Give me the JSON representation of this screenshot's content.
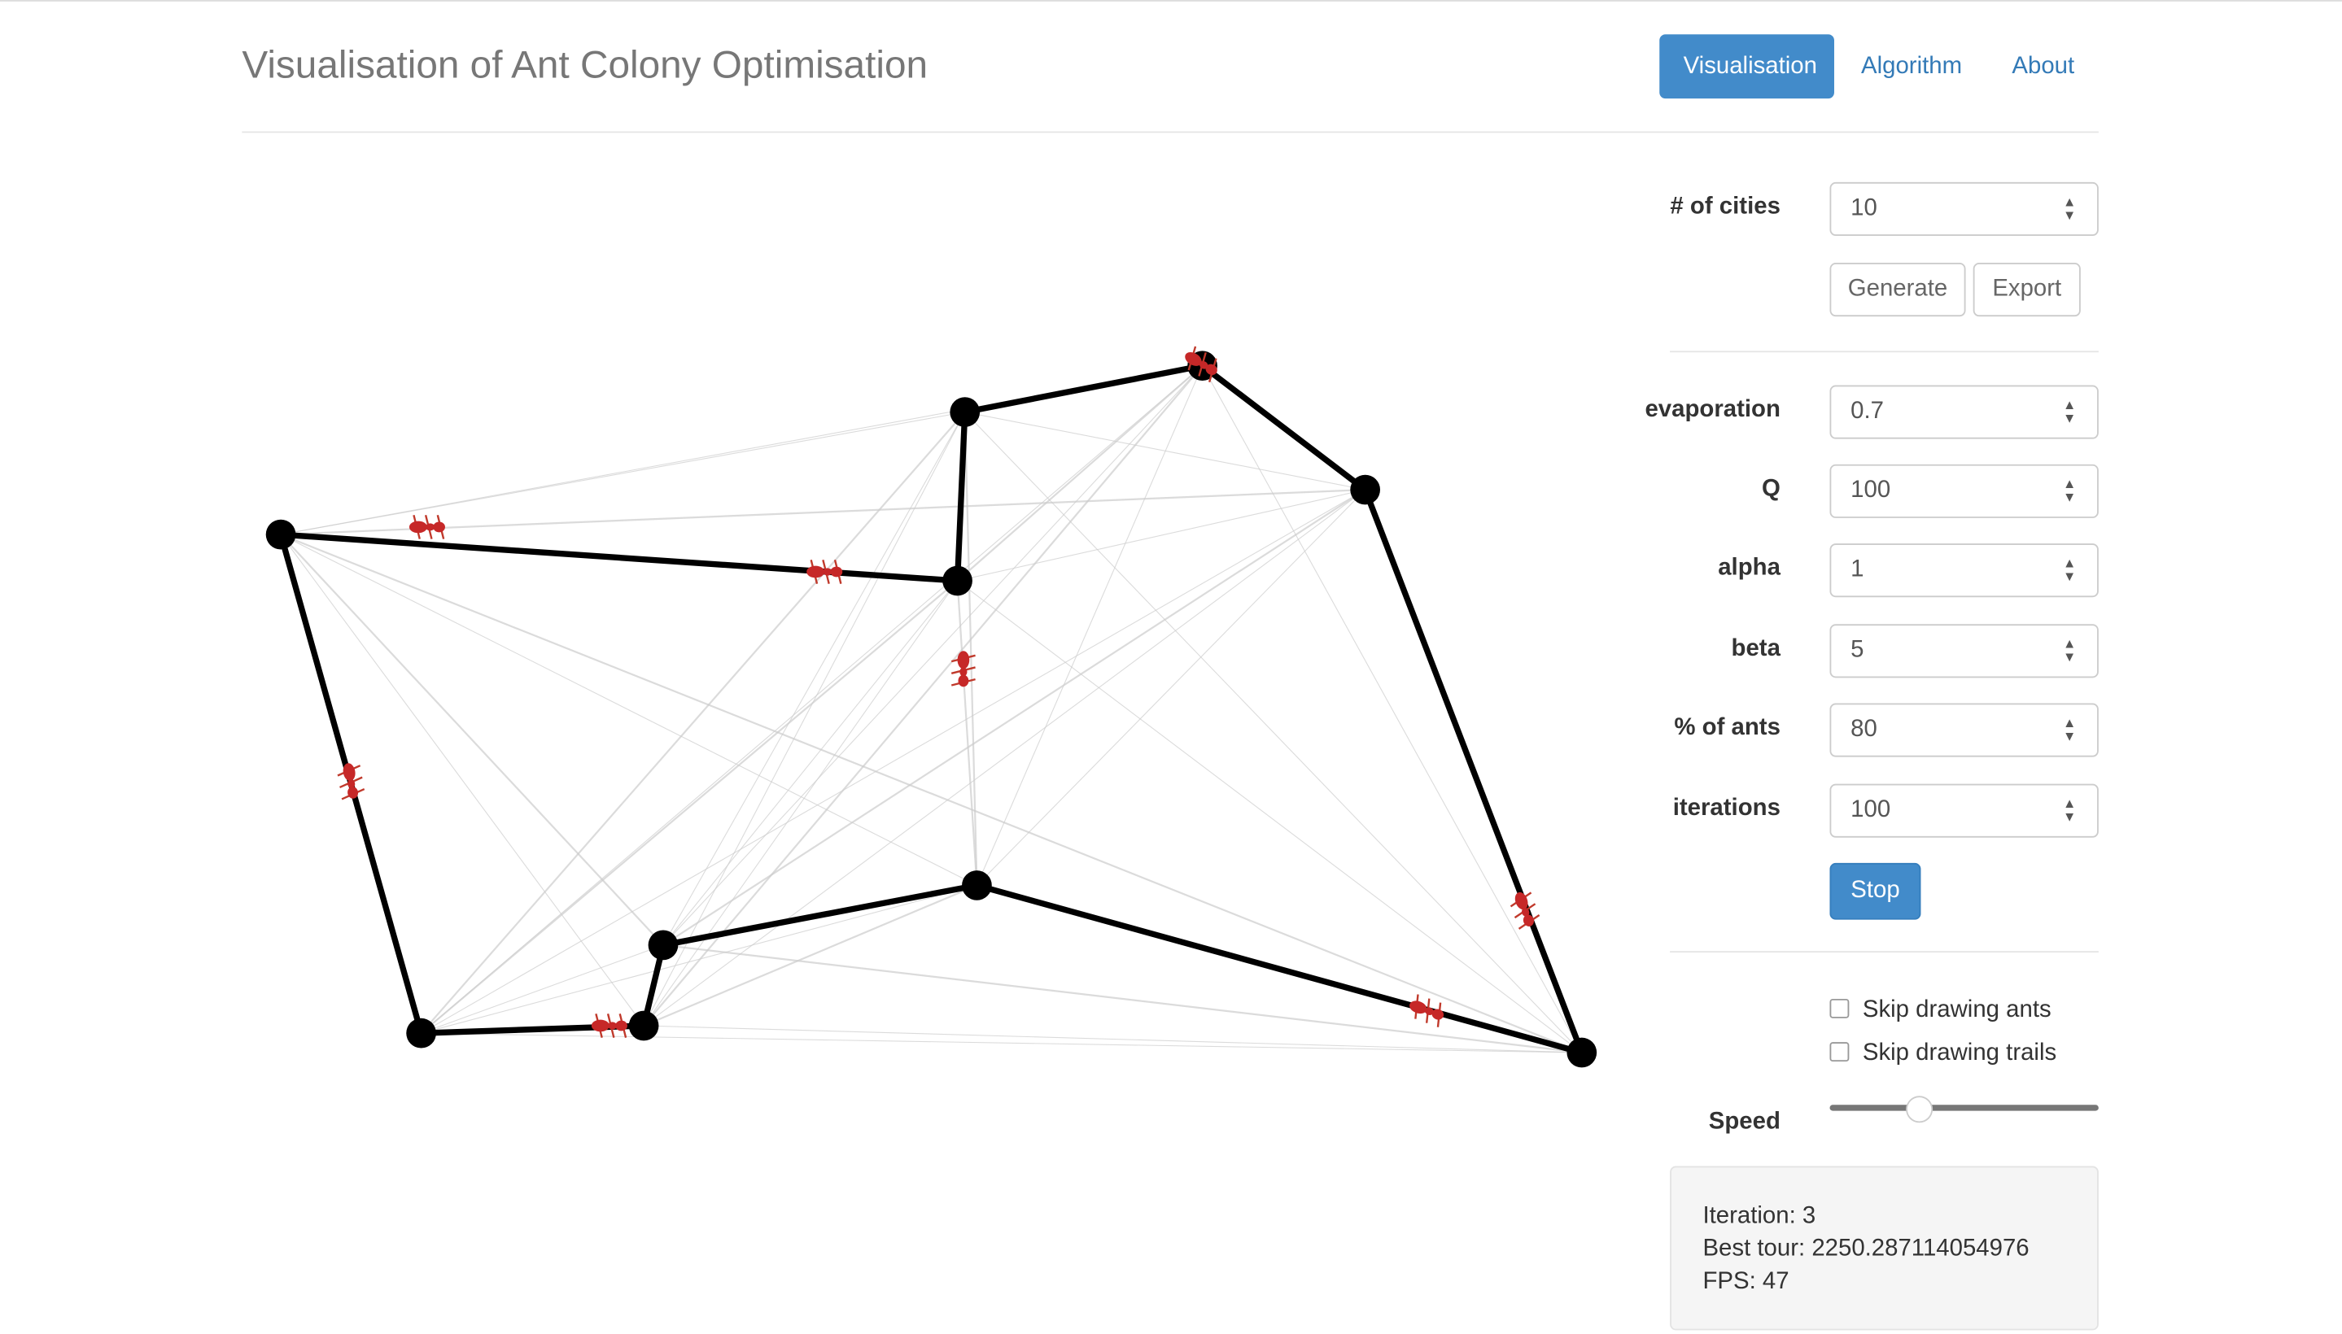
{
  "header": {
    "title": "Visualisation of Ant Colony Optimisation",
    "nav": [
      "Visualisation",
      "Algorithm",
      "About"
    ]
  },
  "form": {
    "cities": {
      "label": "# of cities",
      "value": "10"
    },
    "buttons": [
      "Generate",
      "Export"
    ],
    "params": [
      {
        "label": "evaporation",
        "value": "0.7"
      },
      {
        "label": "Q",
        "value": "100"
      },
      {
        "label": "alpha",
        "value": "1"
      },
      {
        "label": "beta",
        "value": "5"
      },
      {
        "label": "% of ants",
        "value": "80"
      },
      {
        "label": "iterations",
        "value": "100"
      }
    ],
    "run_button": "Stop",
    "checkboxes": [
      "Skip drawing ants",
      "Skip drawing trails"
    ],
    "speed_label": "Speed"
  },
  "stats": [
    "Iteration: 3",
    "Best tour: 2250.287114054976",
    "FPS: 47"
  ]
}
